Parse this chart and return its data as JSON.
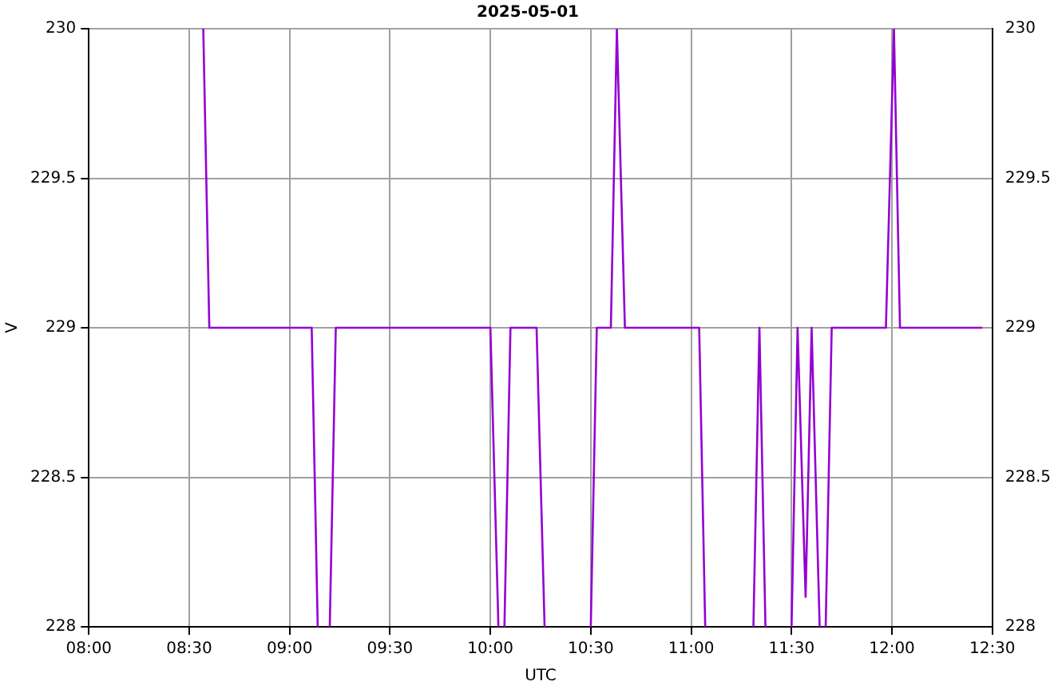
{
  "chart_data": {
    "type": "line",
    "title": "2025-05-01",
    "xlabel": "UTC",
    "ylabel": "V",
    "x": [
      8.57,
      8.6,
      9.11,
      9.14,
      null,
      9.2,
      9.23,
      10.0,
      10.04,
      null,
      10.07,
      10.1,
      10.23,
      10.27,
      null,
      10.5,
      10.53,
      10.6,
      10.63,
      10.67,
      11.04,
      11.07,
      null,
      11.31,
      11.34,
      11.37,
      null,
      11.5,
      11.53,
      11.57,
      11.6,
      11.64,
      null,
      11.67,
      11.7,
      11.97,
      12.01,
      12.04,
      12.45
    ],
    "series": [
      {
        "color": "#9400d3",
        "values": [
          230,
          229,
          229,
          228,
          null,
          228,
          229,
          229,
          228,
          null,
          228,
          229,
          229,
          228,
          null,
          228,
          229,
          229,
          230,
          229,
          229,
          228,
          null,
          228,
          229,
          228,
          null,
          228,
          229,
          228.1,
          229,
          228,
          null,
          228,
          229,
          229,
          230,
          229,
          229
        ]
      }
    ],
    "xlim": [
      8,
      12.5
    ],
    "xticks": [
      {
        "value": 8,
        "label": "08:00"
      },
      {
        "value": 8.5,
        "label": "08:30"
      },
      {
        "value": 9,
        "label": "09:00"
      },
      {
        "value": 9.5,
        "label": "09:30"
      },
      {
        "value": 10,
        "label": "10:00"
      },
      {
        "value": 10.5,
        "label": "10:30"
      },
      {
        "value": 11,
        "label": "11:00"
      },
      {
        "value": 11.5,
        "label": "11:30"
      },
      {
        "value": 12,
        "label": "12:00"
      },
      {
        "value": 12.5,
        "label": "12:30"
      }
    ],
    "ylim": [
      228,
      230
    ],
    "yticks": [
      228,
      228.5,
      229,
      229.5,
      230
    ],
    "y2lim": [
      228,
      230
    ],
    "y2ticks": [
      228,
      228.5,
      229,
      229.5,
      230
    ],
    "grid": true,
    "legend": false,
    "marker": "none",
    "line_style": "solid"
  }
}
